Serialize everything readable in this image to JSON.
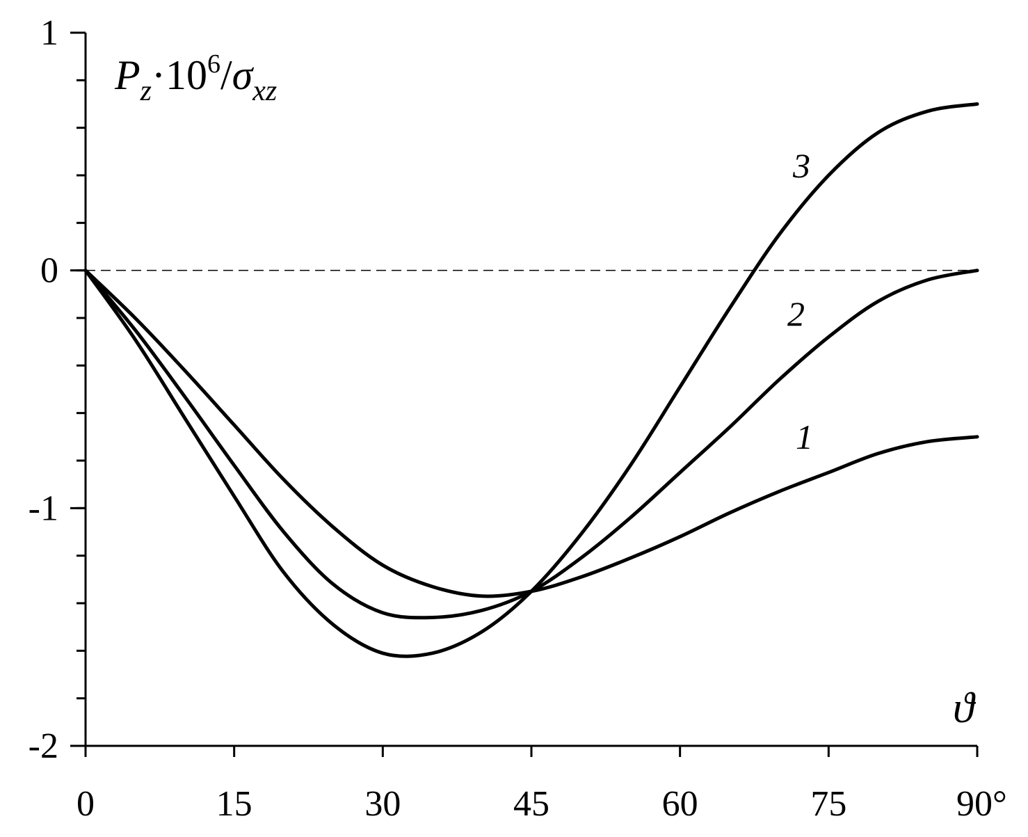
{
  "chart_data": {
    "type": "line",
    "y_title": {
      "base": "P",
      "sub_base": "z",
      "mid": "·10",
      "sup": "6",
      "slash": "/",
      "sigma": "σ",
      "sub_sigma": "xz"
    },
    "x_title": "ϑ",
    "xlim": [
      0,
      90
    ],
    "ylim": [
      -2,
      1
    ],
    "x_ticks": [
      "0",
      "15",
      "30",
      "45",
      "60",
      "75",
      "90°"
    ],
    "x_tick_values": [
      0,
      15,
      30,
      45,
      60,
      75,
      90
    ],
    "y_ticks": [
      "1",
      "0",
      "-1",
      "-2"
    ],
    "y_tick_values": [
      1,
      0,
      -1,
      -2
    ],
    "y_minor_step": 0.2,
    "reference_line_y": 0,
    "grid": false,
    "x": [
      0,
      5,
      10,
      15,
      20,
      25,
      30,
      35,
      40,
      45,
      50,
      55,
      60,
      65,
      70,
      75,
      80,
      85,
      90
    ],
    "series": [
      {
        "label": "1",
        "values": [
          0,
          -0.2,
          -0.42,
          -0.65,
          -0.88,
          -1.08,
          -1.24,
          -1.33,
          -1.37,
          -1.35,
          -1.29,
          -1.21,
          -1.12,
          -1.02,
          -0.93,
          -0.85,
          -0.77,
          -0.72,
          -0.7
        ]
      },
      {
        "label": "2",
        "values": [
          0,
          -0.25,
          -0.53,
          -0.82,
          -1.1,
          -1.32,
          -1.44,
          -1.46,
          -1.43,
          -1.35,
          -1.21,
          -1.04,
          -0.85,
          -0.66,
          -0.46,
          -0.28,
          -0.13,
          -0.04,
          0
        ]
      },
      {
        "label": "3",
        "values": [
          0,
          -0.29,
          -0.62,
          -0.95,
          -1.27,
          -1.49,
          -1.61,
          -1.61,
          -1.52,
          -1.35,
          -1.11,
          -0.82,
          -0.49,
          -0.16,
          0.15,
          0.4,
          0.58,
          0.67,
          0.7
        ]
      }
    ]
  }
}
